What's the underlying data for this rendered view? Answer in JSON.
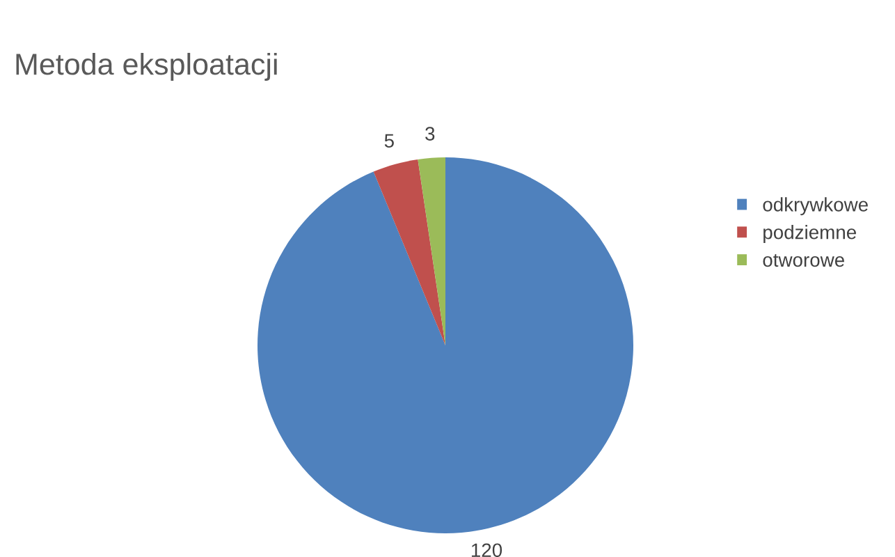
{
  "chart_data": {
    "type": "pie",
    "title": "Metoda eksploatacji",
    "categories": [
      "odkrywkowe",
      "podziemne",
      "otworowe"
    ],
    "values": [
      120,
      5,
      3
    ],
    "colors": [
      "#4f81bd",
      "#c0504d",
      "#9bbb59"
    ],
    "data_labels": true,
    "legend": "right"
  }
}
